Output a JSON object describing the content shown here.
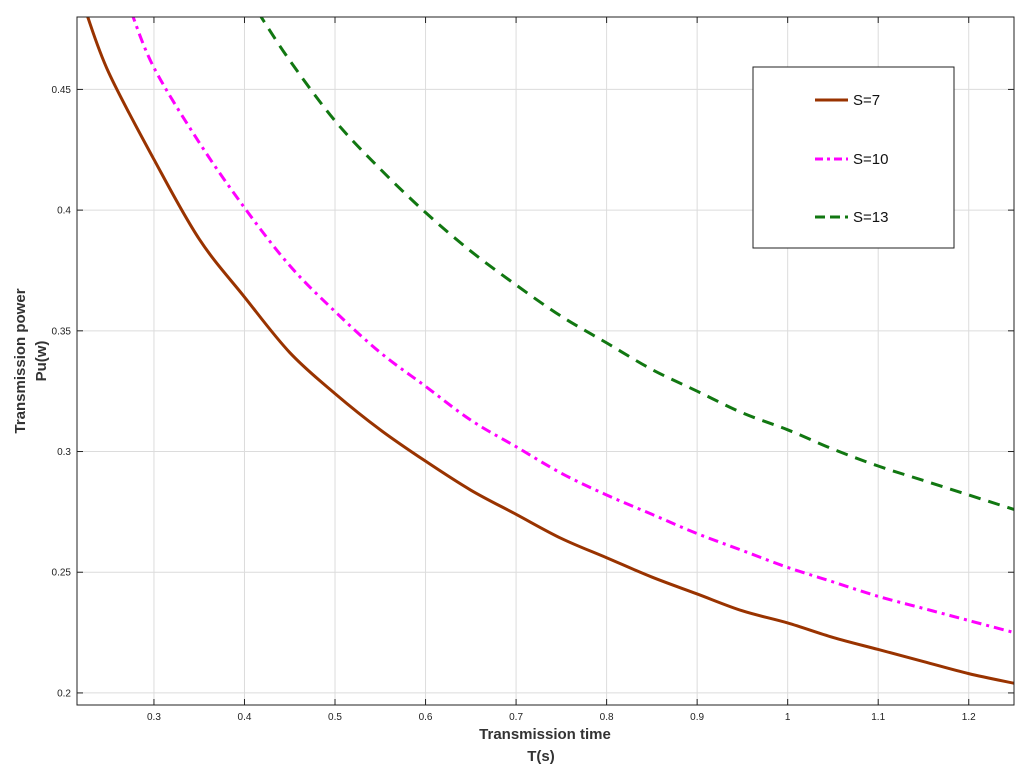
{
  "chart_data": {
    "type": "line",
    "title": "",
    "xlabel": [
      "Transmission time",
      "T(s)"
    ],
    "ylabel": [
      "Transmission power",
      "Pu(w)"
    ],
    "xlim": [
      0.215,
      1.25
    ],
    "ylim": [
      0.195,
      0.48
    ],
    "xticks": [
      0.3,
      0.4,
      0.5,
      0.6,
      0.7,
      0.8,
      0.9,
      1,
      1.1,
      1.2
    ],
    "yticks": [
      0.2,
      0.25,
      0.3,
      0.35,
      0.4,
      0.45
    ],
    "xtick_labels": [
      "0.3",
      "0.4",
      "0.5",
      "0.6",
      "0.7",
      "0.8",
      "0.9",
      "1",
      "1.1",
      "1.2"
    ],
    "ytick_labels": [
      "0.2",
      "0.25",
      "0.3",
      "0.35",
      "0.4",
      "0.45"
    ],
    "grid": true,
    "legend_position": "top-right",
    "series": [
      {
        "name": "S=7",
        "color": "#993300",
        "dash": "solid",
        "x": [
          0.225,
          0.25,
          0.3,
          0.35,
          0.4,
          0.45,
          0.5,
          0.55,
          0.6,
          0.65,
          0.7,
          0.75,
          0.8,
          0.85,
          0.9,
          0.95,
          1.0,
          1.05,
          1.1,
          1.15,
          1.2,
          1.25
        ],
        "values": [
          0.482,
          0.457,
          0.421,
          0.388,
          0.364,
          0.341,
          0.324,
          0.309,
          0.296,
          0.284,
          0.274,
          0.264,
          0.256,
          0.248,
          0.241,
          0.234,
          0.229,
          0.223,
          0.218,
          0.213,
          0.208,
          0.204
        ]
      },
      {
        "name": "S=10",
        "color": "#ff00ff",
        "dash": "dashdot",
        "x": [
          0.275,
          0.3,
          0.35,
          0.4,
          0.45,
          0.5,
          0.55,
          0.6,
          0.65,
          0.7,
          0.75,
          0.8,
          0.85,
          0.9,
          0.95,
          1.0,
          1.05,
          1.1,
          1.15,
          1.2,
          1.25
        ],
        "values": [
          0.482,
          0.459,
          0.428,
          0.401,
          0.377,
          0.358,
          0.341,
          0.327,
          0.313,
          0.302,
          0.291,
          0.282,
          0.274,
          0.266,
          0.259,
          0.252,
          0.246,
          0.24,
          0.235,
          0.23,
          0.225
        ]
      },
      {
        "name": "S=13",
        "color": "#117711",
        "dash": "dashed",
        "x": [
          0.415,
          0.45,
          0.5,
          0.55,
          0.6,
          0.65,
          0.7,
          0.75,
          0.8,
          0.85,
          0.9,
          0.95,
          1.0,
          1.05,
          1.1,
          1.15,
          1.2,
          1.25
        ],
        "values": [
          0.482,
          0.462,
          0.437,
          0.417,
          0.399,
          0.383,
          0.369,
          0.356,
          0.345,
          0.334,
          0.325,
          0.316,
          0.309,
          0.301,
          0.294,
          0.288,
          0.282,
          0.276
        ]
      }
    ]
  }
}
